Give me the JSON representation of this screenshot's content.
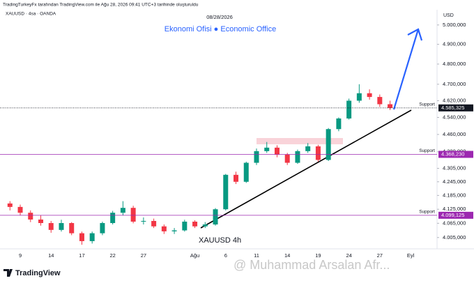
{
  "header": "TradingTurkeyFx tarafından TradingView.com ile Ağu 28, 2026 09:41 UTC+3 tarihinde oluşturuldu",
  "chart_data": {
    "type": "candlestick",
    "symbol": "XAUUSD · 4sa · OANDA",
    "date": "08/28/2026",
    "title": "Ekonomi Ofisi ● Economic Office",
    "currency": "USD",
    "annotation": "XAUUSD   4h",
    "watermark": "@ Muhammad Arsalan Afr...",
    "brand": "TradingView",
    "log_scale": true,
    "categories": [
      null,
      "9",
      null,
      null,
      "14",
      null,
      null,
      "17",
      null,
      null,
      "22",
      null,
      null,
      "27",
      null,
      null,
      null,
      null,
      "Ağu",
      null,
      null,
      "6",
      null,
      null,
      "11",
      null,
      null,
      "14",
      null,
      null,
      "19",
      null,
      null,
      "24",
      null,
      null,
      "27",
      null,
      null,
      "Eyl"
    ],
    "open": [
      4150,
      4135,
      4110,
      4081,
      4066,
      4037,
      4066,
      4023,
      3990,
      4023,
      4066,
      4110,
      4131,
      4072,
      4075,
      4052,
      4031,
      4035,
      4072,
      4052,
      4060,
      4125,
      4276,
      4245,
      4330,
      4383,
      4399,
      4367,
      4330,
      4383,
      4405,
      4343,
      4485,
      4535,
      4620,
      4656,
      4638,
      4603,
      null,
      null
    ],
    "high": [
      4160,
      4145,
      4120,
      4100,
      4075,
      4080,
      4070,
      4030,
      4030,
      4072,
      4118,
      4160,
      4140,
      4090,
      4085,
      4060,
      4045,
      4080,
      4078,
      4070,
      4130,
      4280,
      4290,
      4335,
      4395,
      4425,
      4410,
      4375,
      4390,
      4420,
      4412,
      4490,
      4540,
      4630,
      4700,
      4675,
      4650,
      4620,
      null,
      null
    ],
    "low": [
      4120,
      4100,
      4070,
      4055,
      4025,
      4030,
      4015,
      3975,
      3980,
      4015,
      4060,
      4100,
      4065,
      4060,
      4045,
      4020,
      4020,
      4030,
      4045,
      4045,
      4055,
      4120,
      4235,
      4240,
      4320,
      4375,
      4355,
      4320,
      4325,
      4375,
      4335,
      4338,
      4475,
      4530,
      4610,
      4625,
      4590,
      4575,
      null,
      null
    ],
    "close": [
      4135,
      4110,
      4081,
      4066,
      4037,
      4066,
      4023,
      3990,
      4023,
      4066,
      4110,
      4131,
      4072,
      4075,
      4052,
      4031,
      4035,
      4072,
      4052,
      4060,
      4125,
      4276,
      4245,
      4330,
      4383,
      4399,
      4367,
      4330,
      4383,
      4405,
      4343,
      4485,
      4535,
      4620,
      4656,
      4638,
      4603,
      4585,
      null,
      null
    ],
    "up_color": "#089981",
    "down_color": "#f23645",
    "ylim": [
      3958,
      5080
    ],
    "yticks": [
      {
        "value": 5000,
        "label": "5.000,000"
      },
      {
        "value": 4900,
        "label": "4.900,000"
      },
      {
        "value": 4800,
        "label": "4.800,000"
      },
      {
        "value": 4700,
        "label": "4.700,000"
      },
      {
        "value": 4620,
        "label": "4.620,000"
      },
      {
        "value": 4540,
        "label": "4.540,000"
      },
      {
        "value": 4460,
        "label": "4.460,000"
      },
      {
        "value": 4380,
        "label": "4.380,000"
      },
      {
        "value": 4305,
        "label": "4.305,000"
      },
      {
        "value": 4245,
        "label": "4.245,000"
      },
      {
        "value": 4185,
        "label": "4.185,000"
      },
      {
        "value": 4125,
        "label": "4.125,000"
      },
      {
        "value": 4065,
        "label": "4.065,000"
      },
      {
        "value": 4005,
        "label": "4.005,000"
      }
    ],
    "support_lines": [
      {
        "name": "Support",
        "value": 4585.325,
        "label": "4.585,325",
        "color": "#131722"
      },
      {
        "name": "Support",
        "value": 4368.23,
        "label": "4.368,230",
        "color": "#9c27b0"
      },
      {
        "name": "Support",
        "value": 4099.125,
        "label": "4.099,125",
        "color": "#9c27b0"
      }
    ]
  }
}
